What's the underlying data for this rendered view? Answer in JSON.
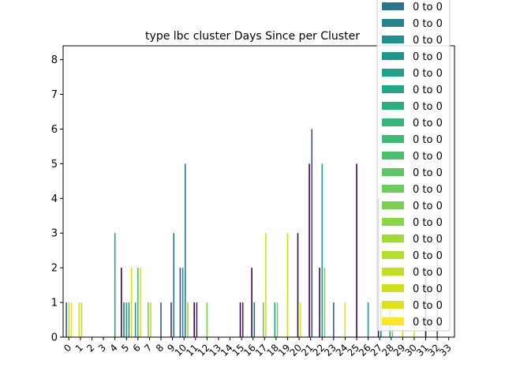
{
  "chart_data": {
    "type": "bar",
    "title": "type lbc cluster Days Since per Cluster",
    "xlabel": "",
    "ylabel": "",
    "ylim": [
      0,
      8.4
    ],
    "yticks": [
      0,
      1,
      2,
      3,
      4,
      5,
      6,
      7,
      8
    ],
    "categories": [
      "0",
      "1",
      "2",
      "3",
      "4",
      "5",
      "6",
      "7",
      "8",
      "9",
      "10",
      "11",
      "12",
      "13",
      "14",
      "15",
      "16",
      "17",
      "18",
      "19",
      "20",
      "21",
      "22",
      "23",
      "24",
      "25",
      "26",
      "27",
      "28",
      "29",
      "30",
      "31",
      "32",
      "33"
    ],
    "bars": [
      {
        "x": 0,
        "value": 1,
        "color": "#3b528b"
      },
      {
        "x": 0,
        "value": 1,
        "color": "#b5de2b"
      },
      {
        "x": 0,
        "value": 1,
        "color": "#dde318"
      },
      {
        "x": 1,
        "value": 1,
        "color": "#dde318"
      },
      {
        "x": 1,
        "value": 1,
        "color": "#bddf26"
      },
      {
        "x": 4,
        "value": 3,
        "color": "#21a585"
      },
      {
        "x": 5,
        "value": 2,
        "color": "#440154"
      },
      {
        "x": 5,
        "value": 1,
        "color": "#2a788e"
      },
      {
        "x": 5,
        "value": 1,
        "color": "#22a884"
      },
      {
        "x": 5,
        "value": 1,
        "color": "#1f988b"
      },
      {
        "x": 5,
        "value": 2,
        "color": "#d0e11c"
      },
      {
        "x": 6,
        "value": 1,
        "color": "#1f988b"
      },
      {
        "x": 6,
        "value": 2,
        "color": "#44bf70"
      },
      {
        "x": 6,
        "value": 2,
        "color": "#d8e219"
      },
      {
        "x": 7,
        "value": 1,
        "color": "#7ad151"
      },
      {
        "x": 7,
        "value": 1,
        "color": "#bddf26"
      },
      {
        "x": 8,
        "value": 1,
        "color": "#3b528b"
      },
      {
        "x": 9,
        "value": 1,
        "color": "#482878"
      },
      {
        "x": 9,
        "value": 3,
        "color": "#2a788e"
      },
      {
        "x": 10,
        "value": 2,
        "color": "#3b528b"
      },
      {
        "x": 10,
        "value": 2,
        "color": "#21918c"
      },
      {
        "x": 10,
        "value": 5,
        "color": "#2a788e"
      },
      {
        "x": 10,
        "value": 1,
        "color": "#a0da39"
      },
      {
        "x": 11,
        "value": 1,
        "color": "#440154"
      },
      {
        "x": 11,
        "value": 1,
        "color": "#482878"
      },
      {
        "x": 12,
        "value": 1,
        "color": "#7ad151"
      },
      {
        "x": 15,
        "value": 1,
        "color": "#440154"
      },
      {
        "x": 15,
        "value": 1,
        "color": "#482878"
      },
      {
        "x": 16,
        "value": 2,
        "color": "#440154"
      },
      {
        "x": 16,
        "value": 1,
        "color": "#31688e"
      },
      {
        "x": 17,
        "value": 1,
        "color": "#5ec962"
      },
      {
        "x": 17,
        "value": 3,
        "color": "#d0e11c"
      },
      {
        "x": 18,
        "value": 1,
        "color": "#22a884"
      },
      {
        "x": 18,
        "value": 1,
        "color": "#7ad151"
      },
      {
        "x": 19,
        "value": 3,
        "color": "#c2df23"
      },
      {
        "x": 20,
        "value": 3,
        "color": "#440154"
      },
      {
        "x": 20,
        "value": 1,
        "color": "#dde318"
      },
      {
        "x": 21,
        "value": 5,
        "color": "#440154"
      },
      {
        "x": 21,
        "value": 6,
        "color": "#3b528b"
      },
      {
        "x": 22,
        "value": 2,
        "color": "#440154"
      },
      {
        "x": 22,
        "value": 5,
        "color": "#21a585"
      },
      {
        "x": 22,
        "value": 2,
        "color": "#7ad151"
      },
      {
        "x": 23,
        "value": 1,
        "color": "#3b528b"
      },
      {
        "x": 24,
        "value": 1,
        "color": "#dde318"
      },
      {
        "x": 25,
        "value": 5,
        "color": "#440154"
      },
      {
        "x": 26,
        "value": 1,
        "color": "#21918c"
      },
      {
        "x": 27,
        "value": 4,
        "color": "#440154"
      },
      {
        "x": 27,
        "value": 1,
        "color": "#2a788e"
      },
      {
        "x": 28,
        "value": 1,
        "color": "#22a884"
      },
      {
        "x": 28,
        "value": 1,
        "color": "#7ad151"
      },
      {
        "x": 29,
        "value": 3,
        "color": "#c2df23"
      },
      {
        "x": 30,
        "value": 1,
        "color": "#dde318"
      },
      {
        "x": 31,
        "value": 2,
        "color": "#440154"
      },
      {
        "x": 32,
        "value": 3,
        "color": "#3b528b"
      }
    ],
    "legend": {
      "placement": "top-right",
      "entries": [
        {
          "label": "0 to 0",
          "color": "#2a788e"
        },
        {
          "label": "0 to 0",
          "color": "#25838e"
        },
        {
          "label": "0 to 0",
          "color": "#21918c"
        },
        {
          "label": "0 to 0",
          "color": "#1f988b"
        },
        {
          "label": "0 to 0",
          "color": "#1fa088"
        },
        {
          "label": "0 to 0",
          "color": "#22a884"
        },
        {
          "label": "0 to 0",
          "color": "#2ab07f"
        },
        {
          "label": "0 to 0",
          "color": "#35b779"
        },
        {
          "label": "0 to 0",
          "color": "#3fbc73"
        },
        {
          "label": "0 to 0",
          "color": "#4ac16d"
        },
        {
          "label": "0 to 0",
          "color": "#5ec962"
        },
        {
          "label": "0 to 0",
          "color": "#6ccd5a"
        },
        {
          "label": "0 to 0",
          "color": "#7ad151"
        },
        {
          "label": "0 to 0",
          "color": "#8bd646"
        },
        {
          "label": "0 to 0",
          "color": "#a0da39"
        },
        {
          "label": "0 to 0",
          "color": "#b5de2b"
        },
        {
          "label": "0 to 0",
          "color": "#c2df23"
        },
        {
          "label": "0 to 0",
          "color": "#d0e11c"
        },
        {
          "label": "0 to 0",
          "color": "#dde318"
        },
        {
          "label": "0 to 0",
          "color": "#fde725"
        }
      ]
    }
  }
}
